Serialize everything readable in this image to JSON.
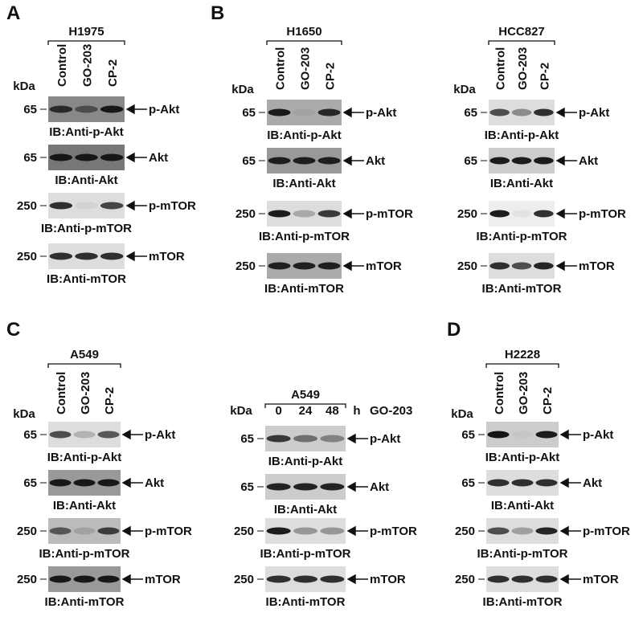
{
  "panels": [
    {
      "label": "A",
      "groups": [
        {
          "cell_line": "H1975",
          "kda_label": "kDa",
          "lanes": [
            "Control",
            "GO-203",
            "CP-2"
          ],
          "blots": [
            {
              "marker": "65",
              "target": "p-Akt",
              "antibody": "IB:Anti-p-Akt"
            },
            {
              "marker": "65",
              "target": "Akt",
              "antibody": "IB:Anti-Akt"
            },
            {
              "marker": "250",
              "target": "p-mTOR",
              "antibody": "IB:Anti-p-mTOR"
            },
            {
              "marker": "250",
              "target": "mTOR",
              "antibody": "IB:Anti-mTOR"
            }
          ]
        }
      ]
    },
    {
      "label": "B",
      "groups": [
        {
          "cell_line": "H1650",
          "kda_label": "kDa",
          "lanes": [
            "Control",
            "GO-203",
            "CP-2"
          ],
          "blots": [
            {
              "marker": "65",
              "target": "p-Akt",
              "antibody": "IB:Anti-p-Akt"
            },
            {
              "marker": "65",
              "target": "Akt",
              "antibody": "IB:Anti-Akt"
            },
            {
              "marker": "250",
              "target": "p-mTOR",
              "antibody": "IB:Anti-p-mTOR"
            },
            {
              "marker": "250",
              "target": "mTOR",
              "antibody": "IB:Anti-mTOR"
            }
          ]
        },
        {
          "cell_line": "HCC827",
          "kda_label": "kDa",
          "lanes": [
            "Control",
            "GO-203",
            "CP-2"
          ],
          "blots": [
            {
              "marker": "65",
              "target": "p-Akt",
              "antibody": "IB:Anti-p-Akt"
            },
            {
              "marker": "65",
              "target": "Akt",
              "antibody": "IB:Anti-Akt"
            },
            {
              "marker": "250",
              "target": "p-mTOR",
              "antibody": "IB:Anti-p-mTOR"
            },
            {
              "marker": "250",
              "target": "mTOR",
              "antibody": "IB:Anti-mTOR"
            }
          ]
        }
      ]
    },
    {
      "label": "C",
      "groups": [
        {
          "cell_line": "A549",
          "kda_label": "kDa",
          "lanes": [
            "Control",
            "GO-203",
            "CP-2"
          ],
          "blots": [
            {
              "marker": "65",
              "target": "p-Akt",
              "antibody": "IB:Anti-p-Akt"
            },
            {
              "marker": "65",
              "target": "Akt",
              "antibody": "IB:Anti-Akt"
            },
            {
              "marker": "250",
              "target": "p-mTOR",
              "antibody": "IB:Anti-p-mTOR"
            },
            {
              "marker": "250",
              "target": "mTOR",
              "antibody": "IB:Anti-mTOR"
            }
          ]
        },
        {
          "cell_line": "A549",
          "kda_label": "kDa",
          "lanes": [
            "0",
            "24",
            "48"
          ],
          "unit": "h",
          "treatment": "GO-203",
          "blots": [
            {
              "marker": "65",
              "target": "p-Akt",
              "antibody": "IB:Anti-p-Akt"
            },
            {
              "marker": "65",
              "target": "Akt",
              "antibody": "IB:Anti-Akt"
            },
            {
              "marker": "250",
              "target": "p-mTOR",
              "antibody": "IB:Anti-p-mTOR"
            },
            {
              "marker": "250",
              "target": "mTOR",
              "antibody": "IB:Anti-mTOR"
            }
          ]
        }
      ]
    },
    {
      "label": "D",
      "groups": [
        {
          "cell_line": "H2228",
          "kda_label": "kDa",
          "lanes": [
            "Control",
            "GO-203",
            "CP-2"
          ],
          "blots": [
            {
              "marker": "65",
              "target": "p-Akt",
              "antibody": "IB:Anti-p-Akt"
            },
            {
              "marker": "65",
              "target": "Akt",
              "antibody": "IB:Anti-Akt"
            },
            {
              "marker": "250",
              "target": "p-mTOR",
              "antibody": "IB:Anti-p-mTOR"
            },
            {
              "marker": "250",
              "target": "mTOR",
              "antibody": "IB:Anti-mTOR"
            }
          ]
        }
      ]
    }
  ]
}
